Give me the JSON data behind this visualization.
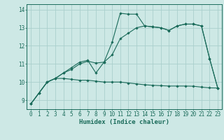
{
  "title": "",
  "xlabel": "Humidex (Indice chaleur)",
  "bg_color": "#cde8e5",
  "grid_color": "#aacfcc",
  "line_color": "#1a6b5a",
  "xlim": [
    -0.5,
    23.5
  ],
  "ylim": [
    8.5,
    14.3
  ],
  "yticks": [
    9,
    10,
    11,
    12,
    13,
    14
  ],
  "xticks": [
    0,
    1,
    2,
    3,
    4,
    5,
    6,
    7,
    8,
    9,
    10,
    11,
    12,
    13,
    14,
    15,
    16,
    17,
    18,
    19,
    20,
    21,
    22,
    23
  ],
  "series1_x": [
    0,
    1,
    2,
    3,
    4,
    5,
    6,
    7,
    8,
    9,
    10,
    11,
    12,
    13,
    14,
    15,
    16,
    17,
    18,
    19,
    20,
    21,
    22,
    23
  ],
  "series1_y": [
    8.8,
    9.4,
    10.0,
    10.2,
    10.2,
    10.15,
    10.1,
    10.1,
    10.05,
    10.0,
    10.0,
    10.0,
    9.95,
    9.9,
    9.85,
    9.82,
    9.8,
    9.78,
    9.78,
    9.78,
    9.77,
    9.72,
    9.68,
    9.67
  ],
  "series2_x": [
    0,
    1,
    2,
    3,
    4,
    5,
    6,
    7,
    8,
    9,
    10,
    11,
    12,
    13,
    14,
    15,
    16,
    17,
    18,
    19,
    20,
    21,
    22,
    23
  ],
  "series2_y": [
    8.8,
    9.4,
    10.0,
    10.2,
    10.5,
    10.8,
    11.1,
    11.2,
    10.5,
    11.1,
    12.2,
    13.8,
    13.75,
    13.75,
    13.1,
    13.05,
    13.0,
    12.85,
    13.1,
    13.2,
    13.2,
    13.1,
    11.3,
    9.67
  ],
  "series3_x": [
    0,
    1,
    2,
    3,
    4,
    5,
    6,
    7,
    8,
    9,
    10,
    11,
    12,
    13,
    14,
    15,
    16,
    17,
    18,
    19,
    20,
    21,
    22,
    23
  ],
  "series3_y": [
    8.8,
    9.4,
    10.0,
    10.2,
    10.5,
    10.7,
    11.0,
    11.15,
    11.05,
    11.1,
    11.5,
    12.4,
    12.7,
    13.0,
    13.1,
    13.05,
    13.0,
    12.85,
    13.1,
    13.2,
    13.2,
    13.1,
    11.3,
    9.67
  ],
  "tick_fontsize": 5.5,
  "xlabel_fontsize": 6.5
}
